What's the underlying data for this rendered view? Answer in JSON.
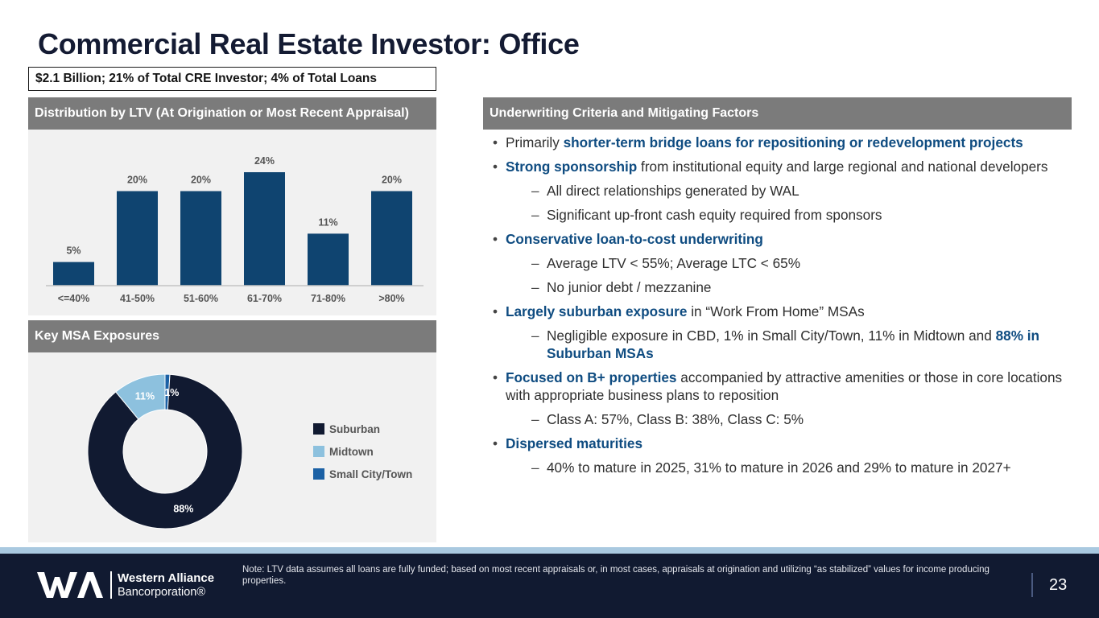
{
  "title": "Commercial Real Estate Investor: Office",
  "subtitle": "$2.1 Billion; 21% of Total CRE Investor; 4% of Total Loans",
  "ltv_panel": {
    "header": "Distribution by LTV (At Origination or Most Recent Appraisal)",
    "bar_color": "#0f4470"
  },
  "msa_panel": {
    "header": "Key MSA Exposures"
  },
  "chart_data": [
    {
      "type": "bar",
      "title": "Distribution by LTV (At Origination or Most Recent Appraisal)",
      "categories": [
        "<=40%",
        "41-50%",
        "51-60%",
        "61-70%",
        "71-80%",
        ">80%"
      ],
      "values": [
        5,
        20,
        20,
        24,
        11,
        20
      ],
      "labels": [
        "5%",
        "20%",
        "20%",
        "24%",
        "11%",
        "20%"
      ],
      "ylim": [
        0,
        24
      ],
      "grid": false
    },
    {
      "type": "pie",
      "donut": true,
      "title": "Key MSA Exposures",
      "categories": [
        "Suburban",
        "Midtown",
        "Small City/Town"
      ],
      "values": [
        88,
        11,
        1
      ],
      "labels": [
        "88%",
        "11%",
        "1%"
      ],
      "colors": [
        "#111a31",
        "#8dc1de",
        "#1b61a5"
      ],
      "legend": "right"
    }
  ],
  "underwriting": {
    "header": "Underwriting Criteria and Mitigating Factors",
    "b1_pre": "Primarily ",
    "b1_hl": "shorter-term bridge loans for repositioning or redevelopment projects",
    "b2_hl": "Strong sponsorship",
    "b2_post": " from institutional equity and large regional and national developers",
    "b2_sub1": "All direct relationships generated by WAL",
    "b2_sub2": "Significant up-front cash equity required from sponsors",
    "b3_hl": "Conservative loan-to-cost underwriting",
    "b3_sub1": "Average LTV < 55%; Average LTC < 65%",
    "b3_sub2": "No junior debt / mezzanine",
    "b4_hl": "Largely suburban exposure",
    "b4_post": " in “Work From Home” MSAs",
    "b4_sub1_pre": "Negligible exposure in CBD, 1% in Small City/Town, 11% in Midtown and ",
    "b4_sub1_hl": "88% in Suburban MSAs",
    "b5_hl": "Focused on B+ properties",
    "b5_post": " accompanied by attractive amenities or those in core locations with appropriate business plans to reposition",
    "b5_sub1": "Class A: 57%, Class B: 38%, Class C: 5%",
    "b6_hl": "Dispersed maturities",
    "b6_sub1": "40% to mature in 2025, 31% to mature in 2026 and 29% to mature in 2027+"
  },
  "footer": {
    "logo_line1": "Western Alliance",
    "logo_line2": "Bancorporation®",
    "note": "Note: LTV data assumes all loans are fully funded; based on most recent appraisals or, in most cases, appraisals at origination and utilizing “as stabilized” values for income producing properties.",
    "page_number": "23"
  }
}
